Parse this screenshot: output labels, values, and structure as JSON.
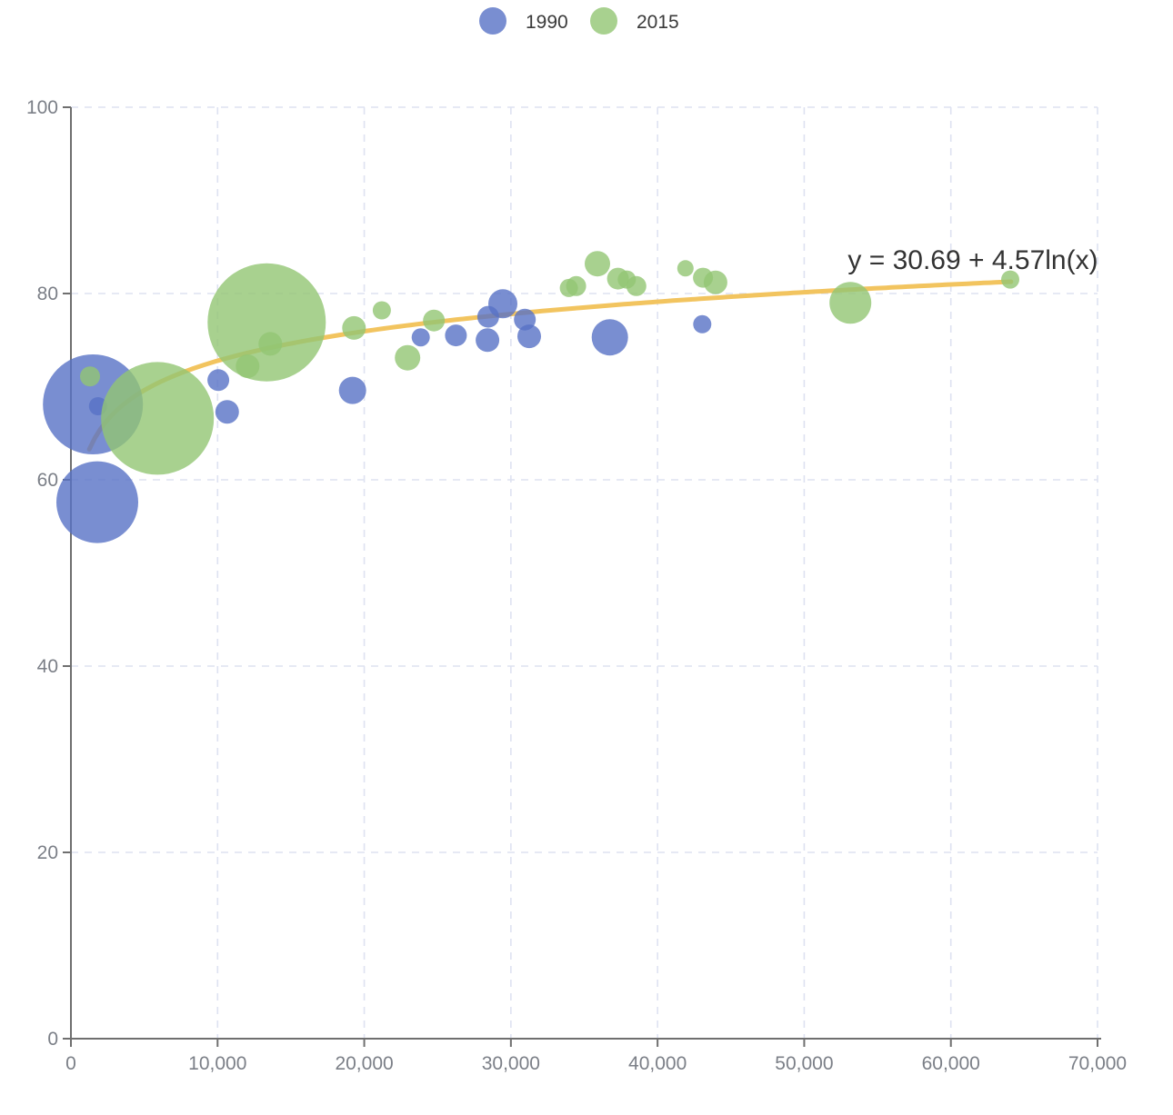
{
  "chart_data": {
    "type": "scatter",
    "subtype": "bubble",
    "title": "",
    "xlabel": "",
    "ylabel": "",
    "xlim": [
      0,
      70000
    ],
    "ylim": [
      0,
      100
    ],
    "grid": true,
    "legend_position": "top-center",
    "x_ticks": [
      {
        "v": 0,
        "label": "0"
      },
      {
        "v": 10000,
        "label": "10,000"
      },
      {
        "v": 20000,
        "label": "20,000"
      },
      {
        "v": 30000,
        "label": "30,000"
      },
      {
        "v": 40000,
        "label": "40,000"
      },
      {
        "v": 50000,
        "label": "50,000"
      },
      {
        "v": 60000,
        "label": "60,000"
      },
      {
        "v": 70000,
        "label": "70,000"
      }
    ],
    "y_ticks": [
      {
        "v": 0,
        "label": "0"
      },
      {
        "v": 20,
        "label": "20"
      },
      {
        "v": 40,
        "label": "40"
      },
      {
        "v": 60,
        "label": "60"
      },
      {
        "v": 80,
        "label": "80"
      },
      {
        "v": 100,
        "label": "100"
      }
    ],
    "trendline": {
      "label": "y = 30.69 + 4.57ln(x)",
      "intercept": 30.69,
      "ln_coefficient": 4.57,
      "x_start": 1250,
      "x_end": 64100,
      "color": "#F2C45F"
    },
    "point_format": [
      "x",
      "y",
      "radius_px"
    ],
    "series": [
      {
        "name": "1990",
        "color": "#5872C6",
        "points": [
          [
            1500,
            68.1,
            55
          ],
          [
            1850,
            67.9,
            10
          ],
          [
            1800,
            57.6,
            45
          ],
          [
            10050,
            70.7,
            12
          ],
          [
            10650,
            67.3,
            13
          ],
          [
            19200,
            69.6,
            15
          ],
          [
            23850,
            75.3,
            10
          ],
          [
            26250,
            75.5,
            12
          ],
          [
            28450,
            77.5,
            12
          ],
          [
            29450,
            78.9,
            16
          ],
          [
            28400,
            75.0,
            13
          ],
          [
            30950,
            77.2,
            12
          ],
          [
            31250,
            75.4,
            13
          ],
          [
            36750,
            75.3,
            20
          ],
          [
            43050,
            76.7,
            10
          ]
        ]
      },
      {
        "name": "2015",
        "color": "#92C573",
        "points": [
          [
            1300,
            71.1,
            11
          ],
          [
            5900,
            66.6,
            62
          ],
          [
            13350,
            76.9,
            65
          ],
          [
            13600,
            74.6,
            13
          ],
          [
            12050,
            72.2,
            13
          ],
          [
            19300,
            76.3,
            13
          ],
          [
            21200,
            78.2,
            10
          ],
          [
            22950,
            73.1,
            14
          ],
          [
            24750,
            77.1,
            12
          ],
          [
            33950,
            80.6,
            10
          ],
          [
            34450,
            80.8,
            11
          ],
          [
            35900,
            83.2,
            14
          ],
          [
            37300,
            81.6,
            12
          ],
          [
            37900,
            81.5,
            10
          ],
          [
            38550,
            80.8,
            11
          ],
          [
            41900,
            82.7,
            9
          ],
          [
            43100,
            81.7,
            11
          ],
          [
            43950,
            81.2,
            13
          ],
          [
            53150,
            79.0,
            23
          ],
          [
            64050,
            81.5,
            10
          ]
        ]
      }
    ]
  },
  "colors": {
    "grid": "#DEE2F1",
    "axis": "#6F6F6F",
    "tick_label": "#7B7F87",
    "equation_text": "#333333"
  },
  "style": {
    "bubble_opacity": 0.8
  }
}
